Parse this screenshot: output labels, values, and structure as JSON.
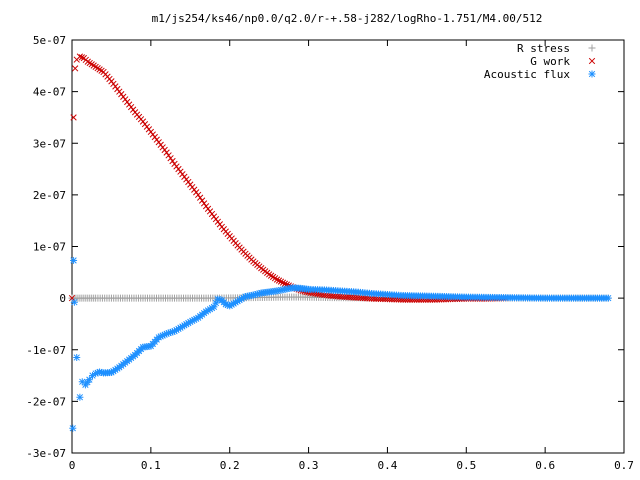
{
  "chart_data": {
    "type": "scatter",
    "title": "m1/js254/ks46/np0.0/q2.0/r-+.58-j282/logRho-1.751/M4.00/512",
    "xlabel": "",
    "ylabel": "",
    "xlim": [
      0,
      0.7
    ],
    "ylim": [
      -3e-07,
      5e-07
    ],
    "x_ticks": [
      0,
      0.1,
      0.2,
      0.3,
      0.4,
      0.5,
      0.6,
      0.7
    ],
    "x_tick_labels": [
      "0",
      "0.1",
      "0.2",
      "0.3",
      "0.4",
      "0.5",
      "0.6",
      "0.7"
    ],
    "y_ticks": [
      -3e-07,
      -2e-07,
      -1e-07,
      0,
      1e-07,
      2e-07,
      3e-07,
      4e-07,
      5e-07
    ],
    "y_tick_labels": [
      "-3e-07",
      "-2e-07",
      "-1e-07",
      "0",
      "1e-07",
      "2e-07",
      "3e-07",
      "4e-07",
      "5e-07"
    ],
    "grid": false,
    "legend_position": "top-right",
    "series": [
      {
        "name": "R stress",
        "marker": "plus",
        "color": "#a0a0a0",
        "points": [
          [
            0.0,
            0
          ],
          [
            0.01,
            0
          ],
          [
            0.02,
            0
          ],
          [
            0.03,
            0
          ],
          [
            0.05,
            0
          ],
          [
            0.07,
            0
          ],
          [
            0.09,
            0
          ],
          [
            0.11,
            0
          ],
          [
            0.13,
            0
          ],
          [
            0.15,
            0
          ],
          [
            0.17,
            0
          ],
          [
            0.19,
            2e-10
          ],
          [
            0.21,
            5e-10
          ],
          [
            0.23,
            1e-09
          ],
          [
            0.25,
            1.5e-09
          ],
          [
            0.27,
            2e-09
          ],
          [
            0.29,
            2e-09
          ],
          [
            0.31,
            1.5e-09
          ],
          [
            0.33,
            1e-09
          ],
          [
            0.35,
            8e-10
          ],
          [
            0.4,
            5e-10
          ],
          [
            0.45,
            3e-10
          ],
          [
            0.5,
            2e-10
          ],
          [
            0.55,
            1e-10
          ],
          [
            0.6,
            0
          ],
          [
            0.68,
            0
          ]
        ]
      },
      {
        "name": "G work",
        "marker": "cross",
        "color": "#cc0000",
        "points": [
          [
            0.0,
            0
          ],
          [
            0.002,
            3.5e-07
          ],
          [
            0.004,
            4.45e-07
          ],
          [
            0.006,
            4.62e-07
          ],
          [
            0.01,
            4.68e-07
          ],
          [
            0.015,
            4.65e-07
          ],
          [
            0.02,
            4.58e-07
          ],
          [
            0.03,
            4.48e-07
          ],
          [
            0.04,
            4.38e-07
          ],
          [
            0.05,
            4.2e-07
          ],
          [
            0.06,
            4e-07
          ],
          [
            0.07,
            3.8e-07
          ],
          [
            0.08,
            3.6e-07
          ],
          [
            0.09,
            3.42e-07
          ],
          [
            0.1,
            3.22e-07
          ],
          [
            0.11,
            3.02e-07
          ],
          [
            0.12,
            2.82e-07
          ],
          [
            0.13,
            2.6e-07
          ],
          [
            0.14,
            2.4e-07
          ],
          [
            0.15,
            2.2e-07
          ],
          [
            0.16,
            2e-07
          ],
          [
            0.17,
            1.78e-07
          ],
          [
            0.18,
            1.58e-07
          ],
          [
            0.19,
            1.38e-07
          ],
          [
            0.2,
            1.2e-07
          ],
          [
            0.21,
            1.02e-07
          ],
          [
            0.22,
            8.6e-08
          ],
          [
            0.23,
            7.1e-08
          ],
          [
            0.24,
            5.8e-08
          ],
          [
            0.25,
            4.6e-08
          ],
          [
            0.26,
            3.6e-08
          ],
          [
            0.27,
            2.8e-08
          ],
          [
            0.28,
            2.1e-08
          ],
          [
            0.29,
            1.5e-08
          ],
          [
            0.3,
            1.1e-08
          ],
          [
            0.32,
            6e-09
          ],
          [
            0.34,
            3e-09
          ],
          [
            0.36,
            1e-09
          ],
          [
            0.38,
            -1e-09
          ],
          [
            0.4,
            -2e-09
          ],
          [
            0.42,
            -3e-09
          ],
          [
            0.44,
            -3e-09
          ],
          [
            0.46,
            -3e-09
          ],
          [
            0.48,
            -2e-09
          ],
          [
            0.5,
            -1e-09
          ],
          [
            0.52,
            -1e-09
          ],
          [
            0.55,
            0
          ]
        ]
      },
      {
        "name": "Acoustic flux",
        "marker": "star",
        "color": "#1e90ff",
        "points": [
          [
            0.001,
            -2.52e-07
          ],
          [
            0.002,
            7.3e-08
          ],
          [
            0.003,
            -8e-09
          ],
          [
            0.006,
            -1.15e-07
          ],
          [
            0.01,
            -1.92e-07
          ],
          [
            0.013,
            -1.62e-07
          ],
          [
            0.017,
            -1.68e-07
          ],
          [
            0.022,
            -1.58e-07
          ],
          [
            0.026,
            -1.5e-07
          ],
          [
            0.03,
            -1.46e-07
          ],
          [
            0.035,
            -1.43e-07
          ],
          [
            0.04,
            -1.45e-07
          ],
          [
            0.05,
            -1.44e-07
          ],
          [
            0.06,
            -1.34e-07
          ],
          [
            0.07,
            -1.22e-07
          ],
          [
            0.08,
            -1.1e-07
          ],
          [
            0.09,
            -9.5e-08
          ],
          [
            0.1,
            -9.3e-08
          ],
          [
            0.11,
            -7.6e-08
          ],
          [
            0.12,
            -6.9e-08
          ],
          [
            0.13,
            -6.4e-08
          ],
          [
            0.14,
            -5.5e-08
          ],
          [
            0.15,
            -4.6e-08
          ],
          [
            0.16,
            -3.8e-08
          ],
          [
            0.17,
            -2.6e-08
          ],
          [
            0.18,
            -1.7e-08
          ],
          [
            0.185,
            -2e-09
          ],
          [
            0.19,
            -4e-09
          ],
          [
            0.195,
            -1.2e-08
          ],
          [
            0.2,
            -1.5e-08
          ],
          [
            0.21,
            -6e-09
          ],
          [
            0.22,
            3e-09
          ],
          [
            0.23,
            6e-09
          ],
          [
            0.24,
            1e-08
          ],
          [
            0.25,
            1.2e-08
          ],
          [
            0.26,
            1.4e-08
          ],
          [
            0.27,
            1.7e-08
          ],
          [
            0.28,
            2e-08
          ],
          [
            0.29,
            1.9e-08
          ],
          [
            0.3,
            1.7e-08
          ],
          [
            0.32,
            1.6e-08
          ],
          [
            0.34,
            1.4e-08
          ],
          [
            0.36,
            1.2e-08
          ],
          [
            0.38,
            9e-09
          ],
          [
            0.4,
            7e-09
          ],
          [
            0.42,
            5e-09
          ],
          [
            0.45,
            4e-09
          ],
          [
            0.5,
            2e-09
          ],
          [
            0.55,
            1e-09
          ],
          [
            0.6,
            0
          ],
          [
            0.65,
            0
          ],
          [
            0.68,
            0
          ]
        ]
      }
    ]
  }
}
